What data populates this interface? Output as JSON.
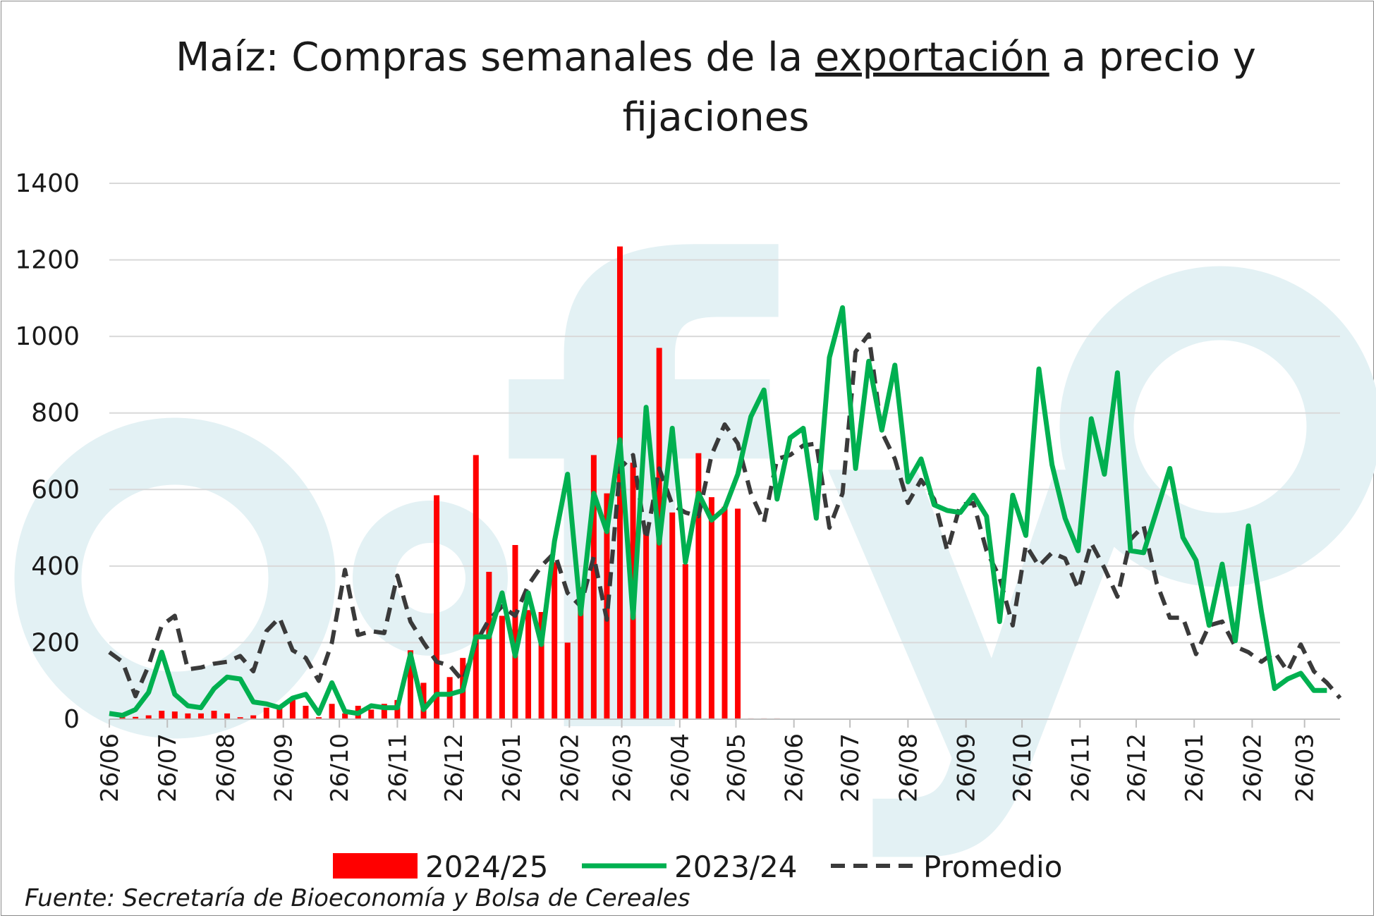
{
  "chart_data": {
    "type": "bar+line",
    "title_parts": {
      "before": "Maíz: Compras semanales de la ",
      "underlined": "exportación",
      "after": " a precio y",
      "line2": "fijaciones"
    },
    "ylim": [
      0,
      1400
    ],
    "yticks": [
      "0",
      "200",
      "400",
      "600",
      "800",
      "1000",
      "1200",
      "1400"
    ],
    "grid": true,
    "x_tick_labels": [
      "26/06",
      "26/07",
      "26/08",
      "26/09",
      "26/10",
      "26/11",
      "26/12",
      "26/01",
      "26/02",
      "26/03",
      "26/04",
      "26/05",
      "26/06",
      "26/07",
      "26/08",
      "26/09",
      "26/10",
      "26/11",
      "26/12",
      "26/01",
      "26/02",
      "26/03"
    ],
    "x_tick_weeks": [
      0,
      4.43,
      8.86,
      13.29,
      17.57,
      22,
      26.29,
      30.71,
      35.14,
      39.14,
      43.57,
      47.86,
      52.29,
      56.57,
      61,
      65.43,
      69.71,
      74.14,
      78.43,
      82.86,
      87.29,
      91.29
    ],
    "weeks": 95,
    "legend_position": "bottom",
    "series": [
      {
        "name": "2024/25",
        "type": "bar",
        "color": "#ff0000",
        "values": [
          0,
          5,
          6,
          10,
          22,
          20,
          15,
          15,
          22,
          15,
          5,
          10,
          30,
          35,
          50,
          35,
          5,
          40,
          15,
          35,
          25,
          40,
          50,
          180,
          95,
          585,
          110,
          160,
          690,
          385,
          270,
          455,
          285,
          280,
          410,
          200,
          345,
          690,
          590,
          1235,
          670,
          505,
          970,
          540,
          405,
          695,
          580,
          555,
          550,
          2,
          2,
          2
        ]
      },
      {
        "name": "2023/24",
        "type": "line",
        "color": "#00b050",
        "values": [
          15,
          10,
          25,
          70,
          175,
          65,
          35,
          30,
          80,
          110,
          105,
          45,
          40,
          30,
          55,
          65,
          15,
          95,
          20,
          15,
          35,
          30,
          30,
          170,
          25,
          65,
          65,
          75,
          215,
          215,
          330,
          165,
          330,
          195,
          465,
          640,
          275,
          590,
          490,
          730,
          265,
          815,
          460,
          760,
          410,
          590,
          520,
          550,
          640,
          790,
          860,
          575,
          735,
          760,
          525,
          945,
          1075,
          655,
          935,
          755,
          925,
          620,
          680,
          560,
          545,
          540,
          585,
          530,
          255,
          585,
          480,
          915,
          665,
          525,
          440,
          785,
          640,
          905,
          440,
          435,
          545,
          655,
          475,
          415,
          245,
          405,
          205,
          505,
          280,
          80,
          105,
          120,
          75,
          75
        ]
      },
      {
        "name": "Promedio",
        "type": "line",
        "style": "dashed",
        "color": "#3a3a3a",
        "values": [
          175,
          150,
          60,
          140,
          245,
          270,
          130,
          135,
          145,
          150,
          165,
          125,
          230,
          265,
          180,
          160,
          100,
          200,
          390,
          220,
          230,
          225,
          375,
          255,
          200,
          150,
          140,
          100,
          200,
          260,
          295,
          270,
          350,
          400,
          435,
          330,
          295,
          425,
          260,
          655,
          690,
          470,
          655,
          560,
          540,
          530,
          690,
          770,
          720,
          590,
          515,
          680,
          690,
          715,
          720,
          500,
          590,
          960,
          1005,
          750,
          680,
          565,
          625,
          575,
          440,
          560,
          565,
          440,
          370,
          245,
          455,
          400,
          435,
          420,
          340,
          460,
          395,
          320,
          470,
          505,
          355,
          265,
          265,
          170,
          245,
          255,
          190,
          175,
          150,
          175,
          125,
          195,
          125,
          95,
          55
        ]
      }
    ],
    "source": "Fuente: Secretaría de Bioeconomía y Bolsa de Cereales"
  }
}
